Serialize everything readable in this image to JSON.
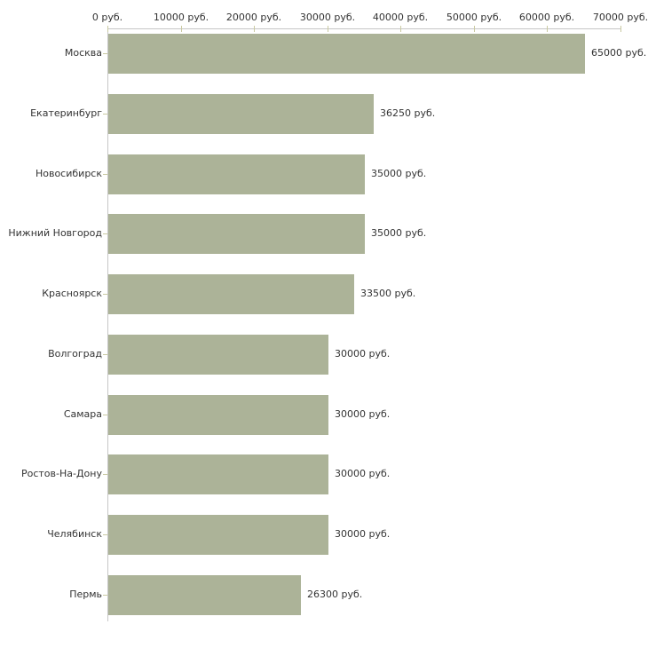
{
  "chart_data": {
    "type": "bar",
    "orientation": "horizontal",
    "title": "",
    "xlabel": "",
    "ylabel": "",
    "unit": "руб.",
    "xlim": [
      0,
      70000
    ],
    "grid": false,
    "legend": "none",
    "categories": [
      "Москва",
      "Екатеринбург",
      "Новосибирск",
      "Нижний Новгород",
      "Красноярск",
      "Волгоград",
      "Самара",
      "Ростов-На-Дону",
      "Челябинск",
      "Пермь"
    ],
    "values": [
      65000,
      36250,
      35000,
      35000,
      33500,
      30000,
      30000,
      30000,
      30000,
      26300
    ],
    "value_labels": [
      "65000 руб.",
      "36250 руб.",
      "35000 руб.",
      "35000 руб.",
      "33500 руб.",
      "30000 руб.",
      "30000 руб.",
      "30000 руб.",
      "30000 руб.",
      "26300 руб."
    ],
    "x_ticks": [
      0,
      10000,
      20000,
      30000,
      40000,
      50000,
      60000,
      70000
    ],
    "x_tick_labels": [
      "0 руб.",
      "10000 руб.",
      "20000 руб.",
      "30000 руб.",
      "40000 руб.",
      "50000 руб.",
      "60000 руб.",
      "70000 руб."
    ],
    "colors": {
      "bar": "#acb398",
      "axis": "#c6c6c6",
      "tick": "#cacaa2",
      "text": "#333333",
      "background": "#ffffff"
    }
  }
}
